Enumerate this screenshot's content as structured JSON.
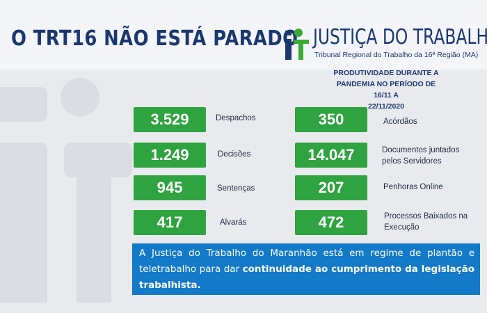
{
  "header": {
    "title": "O TRT16 NÃO ESTÁ PARADO",
    "brand_name": "JUSTIÇA DO TRABALHO",
    "brand_subtitle": "Tribunal Regional do Trabalho da 16ª Região (MA)"
  },
  "productivity": {
    "line1": "PRODUTIVIDADE DURANTE A",
    "line2": "PANDEMIA NO PERÍODO DE 16/11 A",
    "line3": "22/11/2020"
  },
  "stats_left": [
    {
      "value": "3.529",
      "label": "Despachos"
    },
    {
      "value": "1.249",
      "label": "Decisões"
    },
    {
      "value": "945",
      "label": "Sentenças"
    },
    {
      "value": "417",
      "label": "Alvarás"
    }
  ],
  "stats_right": [
    {
      "value": "350",
      "label": "Acórdãos"
    },
    {
      "value": "14.047",
      "label": "Documentos juntados pelos Servidores"
    },
    {
      "value": "207",
      "label": "Penhoras Online"
    },
    {
      "value": "472",
      "label": "Processos Baixados na Execução"
    }
  ],
  "notice": {
    "text_regular": "A Justiça do Trabalho do Maranhão está em regime de plantão e teletrabalho para dar ",
    "text_bold": "continuidade ao cumprimento da legislação trabalhista."
  },
  "colors": {
    "navy": "#1a3770",
    "card_green": "#2ea33f",
    "notice_blue": "#1379c9",
    "logo_green": "#3aa935"
  }
}
